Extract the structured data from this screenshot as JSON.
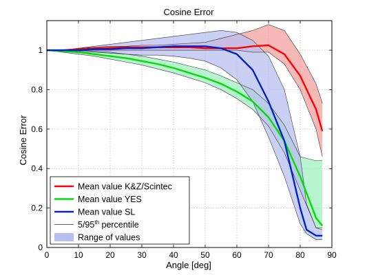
{
  "chart_data": {
    "type": "line",
    "title": "Cosine Error",
    "xlabel": "Angle [deg]",
    "ylabel": "Cosine Error",
    "xlim": [
      0,
      90
    ],
    "ylim": [
      0,
      1.15
    ],
    "xticks": [
      0,
      10,
      20,
      30,
      40,
      50,
      60,
      70,
      80,
      90
    ],
    "yticks": [
      0,
      0.2,
      0.4,
      0.6,
      0.8,
      1
    ],
    "xtick_labels": [
      "0",
      "10",
      "20",
      "30",
      "40",
      "50",
      "60",
      "70",
      "80",
      "90"
    ],
    "ytick_labels": [
      "0",
      "0.2",
      "0.4",
      "0.6",
      "0.8",
      "1"
    ],
    "grid": true,
    "legend_position": "bottom-left",
    "series": [
      {
        "name": "Mean value K&Z/Scintec",
        "color": "#ff0000",
        "x": [
          0,
          5,
          10,
          15,
          20,
          25,
          30,
          35,
          40,
          45,
          50,
          55,
          60,
          65,
          70,
          75,
          80,
          85,
          87
        ],
        "y": [
          1.0,
          1.0,
          1.005,
          1.01,
          1.012,
          1.015,
          1.015,
          1.015,
          1.015,
          1.015,
          1.01,
          1.01,
          1.01,
          1.02,
          1.025,
          0.98,
          0.87,
          0.7,
          0.59
        ],
        "lower": [
          1.0,
          1.0,
          1.0,
          1.0,
          1.0,
          1.0,
          1.0,
          1.0,
          1.0,
          1.0,
          1.0,
          1.0,
          1.0,
          0.99,
          0.99,
          0.93,
          0.8,
          0.6,
          0.46
        ],
        "upper": [
          1.0,
          1.0,
          1.01,
          1.015,
          1.02,
          1.02,
          1.025,
          1.025,
          1.03,
          1.035,
          1.04,
          1.06,
          1.08,
          1.1,
          1.13,
          1.1,
          0.98,
          0.83,
          0.73
        ],
        "band_color": "#f4a0a0"
      },
      {
        "name": "Mean value YES",
        "color": "#00dd00",
        "x": [
          0,
          5,
          10,
          15,
          20,
          25,
          30,
          35,
          40,
          45,
          50,
          55,
          60,
          65,
          70,
          75,
          80,
          85,
          87
        ],
        "y": [
          1.0,
          0.995,
          0.99,
          0.98,
          0.97,
          0.96,
          0.945,
          0.93,
          0.91,
          0.885,
          0.86,
          0.83,
          0.79,
          0.74,
          0.66,
          0.54,
          0.36,
          0.15,
          0.11
        ],
        "lower": [
          1.0,
          0.99,
          0.98,
          0.97,
          0.955,
          0.94,
          0.925,
          0.905,
          0.885,
          0.86,
          0.835,
          0.8,
          0.755,
          0.7,
          0.615,
          0.48,
          0.29,
          0.1,
          0.1
        ],
        "upper": [
          1.0,
          1.0,
          1.0,
          0.995,
          0.99,
          0.98,
          0.97,
          0.955,
          0.94,
          0.92,
          0.9,
          0.87,
          0.835,
          0.8,
          0.73,
          0.62,
          0.46,
          0.44,
          0.44
        ],
        "band_color": "#a0f0c0"
      },
      {
        "name": "Mean value SL",
        "color": "#0022cc",
        "x": [
          0,
          5,
          10,
          15,
          20,
          25,
          30,
          35,
          40,
          45,
          50,
          55,
          60,
          65,
          70,
          75,
          80,
          82,
          85,
          87
        ],
        "y": [
          1.0,
          1.0,
          1.0,
          1.005,
          1.005,
          1.01,
          1.01,
          1.015,
          1.02,
          1.02,
          1.02,
          1.01,
          0.98,
          0.9,
          0.74,
          0.54,
          0.2,
          0.09,
          0.06,
          0.06
        ],
        "lower": [
          1.0,
          1.0,
          0.995,
          0.99,
          0.985,
          0.98,
          0.975,
          0.975,
          0.97,
          0.96,
          0.945,
          0.91,
          0.85,
          0.74,
          0.56,
          0.36,
          0.12,
          0.07,
          0.04,
          0.04
        ],
        "upper": [
          1.0,
          1.0,
          1.01,
          1.02,
          1.03,
          1.04,
          1.05,
          1.06,
          1.07,
          1.08,
          1.09,
          1.1,
          1.09,
          1.05,
          0.97,
          0.8,
          0.46,
          0.22,
          0.1,
          0.09
        ],
        "band_color": "#b8bff0"
      }
    ],
    "legend": [
      {
        "label": "Mean value K&Z/Scintec",
        "kind": "line",
        "color": "#ff0000"
      },
      {
        "label": "Mean value YES",
        "kind": "line",
        "color": "#00dd00"
      },
      {
        "label": "Mean value SL",
        "kind": "line",
        "color": "#0022cc"
      },
      {
        "label_main": "5/95",
        "label_sup": "th",
        "label_rest": " percentile",
        "kind": "thin-line",
        "color": "#000000"
      },
      {
        "label": "Range of values",
        "kind": "patch",
        "color": "#b8bff0"
      }
    ]
  }
}
